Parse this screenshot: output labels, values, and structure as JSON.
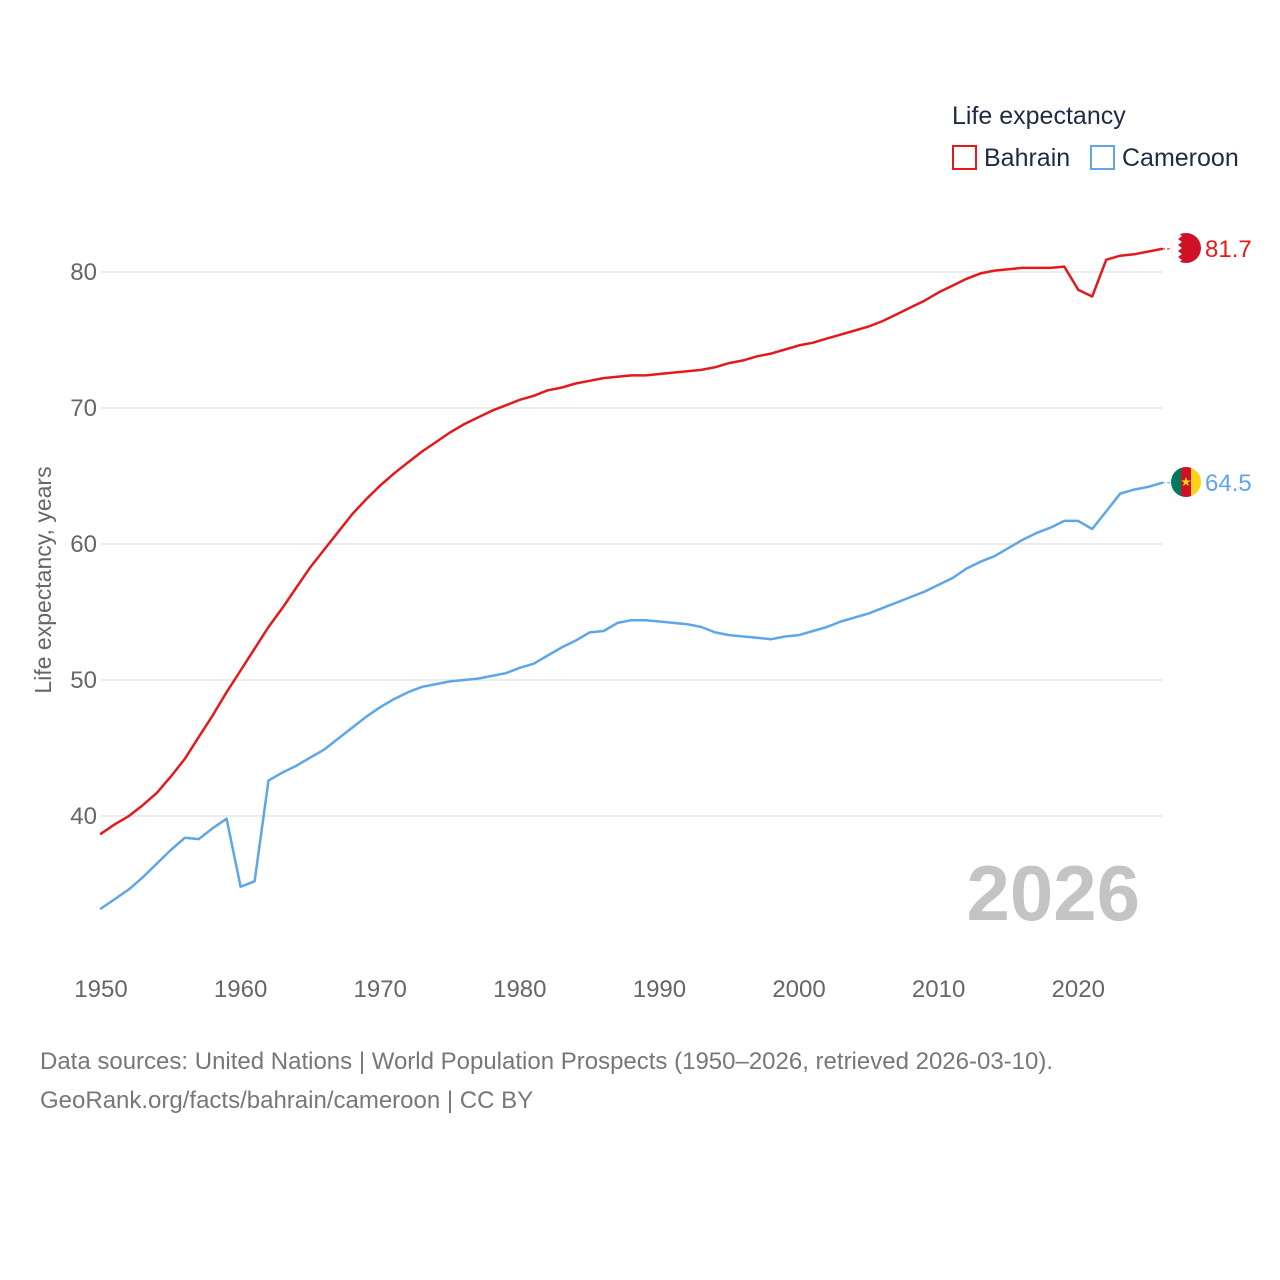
{
  "chart_data": {
    "type": "line",
    "ylabel": "Life expectancy, years",
    "legend_title": "Life expectancy",
    "legend_position": "top-right",
    "year_label": "2026",
    "xlim": [
      1950,
      2026
    ],
    "ylim": [
      32,
      85
    ],
    "x_ticks": [
      1950,
      1960,
      1970,
      1980,
      1990,
      2000,
      2010,
      2020
    ],
    "y_ticks": [
      40,
      50,
      60,
      70,
      80
    ],
    "grid": true,
    "x": [
      1950,
      1951,
      1952,
      1953,
      1954,
      1955,
      1956,
      1957,
      1958,
      1959,
      1960,
      1961,
      1962,
      1963,
      1964,
      1965,
      1966,
      1967,
      1968,
      1969,
      1970,
      1971,
      1972,
      1973,
      1974,
      1975,
      1976,
      1977,
      1978,
      1979,
      1980,
      1981,
      1982,
      1983,
      1984,
      1985,
      1986,
      1987,
      1988,
      1989,
      1990,
      1991,
      1992,
      1993,
      1994,
      1995,
      1996,
      1997,
      1998,
      1999,
      2000,
      2001,
      2002,
      2003,
      2004,
      2005,
      2006,
      2007,
      2008,
      2009,
      2010,
      2011,
      2012,
      2013,
      2014,
      2015,
      2016,
      2017,
      2018,
      2019,
      2020,
      2021,
      2022,
      2023,
      2024,
      2025,
      2026
    ],
    "series": [
      {
        "name": "Bahrain",
        "color": "#e31a1c",
        "end_label": "81.7",
        "values": [
          38.7,
          39.4,
          40.0,
          40.8,
          41.7,
          42.9,
          44.2,
          45.8,
          47.4,
          49.1,
          50.7,
          52.3,
          53.9,
          55.3,
          56.8,
          58.3,
          59.6,
          60.9,
          62.2,
          63.3,
          64.3,
          65.2,
          66.0,
          66.8,
          67.5,
          68.2,
          68.8,
          69.3,
          69.8,
          70.2,
          70.6,
          70.9,
          71.3,
          71.5,
          71.8,
          72.0,
          72.2,
          72.3,
          72.4,
          72.4,
          72.5,
          72.6,
          72.7,
          72.8,
          73.0,
          73.3,
          73.5,
          73.8,
          74.0,
          74.3,
          74.6,
          74.8,
          75.1,
          75.4,
          75.7,
          76.0,
          76.4,
          76.9,
          77.4,
          77.9,
          78.5,
          79.0,
          79.5,
          79.9,
          80.1,
          80.2,
          80.3,
          80.3,
          80.3,
          80.4,
          78.7,
          78.2,
          80.9,
          81.2,
          81.3,
          81.5,
          81.7
        ]
      },
      {
        "name": "Cameroon",
        "color": "#5ea6e6",
        "end_label": "64.5",
        "values": [
          33.2,
          33.9,
          34.6,
          35.5,
          36.5,
          37.5,
          38.4,
          38.3,
          39.1,
          39.8,
          34.8,
          35.2,
          42.6,
          43.2,
          43.7,
          44.3,
          44.9,
          45.7,
          46.5,
          47.3,
          48.0,
          48.6,
          49.1,
          49.5,
          49.7,
          49.9,
          50.0,
          50.1,
          50.3,
          50.5,
          50.9,
          51.2,
          51.8,
          52.4,
          52.9,
          53.5,
          53.6,
          54.2,
          54.4,
          54.4,
          54.3,
          54.2,
          54.1,
          53.9,
          53.5,
          53.3,
          53.2,
          53.1,
          53.0,
          53.2,
          53.3,
          53.6,
          53.9,
          54.3,
          54.6,
          54.9,
          55.3,
          55.7,
          56.1,
          56.5,
          57.0,
          57.5,
          58.2,
          58.7,
          59.1,
          59.7,
          60.3,
          60.8,
          61.2,
          61.7,
          61.7,
          61.1,
          62.4,
          63.7,
          64.0,
          64.2,
          64.5
        ]
      }
    ]
  },
  "footer": {
    "line1": "Data sources: United Nations | World Population Prospects (1950–2026, retrieved 2026-03-10).",
    "line2": "GeoRank.org/facts/bahrain/cameroon | CC BY"
  },
  "icons": {
    "bahrain_flag": "bahrain-flag-icon",
    "cameroon_flag": "cameroon-flag-icon"
  }
}
